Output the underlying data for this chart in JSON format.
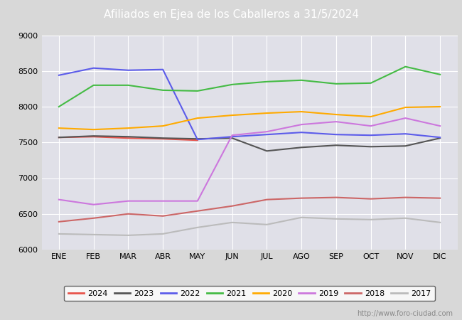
{
  "title": "Afiliados en Ejea de los Caballeros a 31/5/2024",
  "title_color": "#ffffff",
  "title_bg_color": "#4472c4",
  "ylim": [
    6000,
    9000
  ],
  "yticks": [
    6000,
    6500,
    7000,
    7500,
    8000,
    8500,
    9000
  ],
  "months": [
    "ENE",
    "FEB",
    "MAR",
    "ABR",
    "MAY",
    "JUN",
    "JUL",
    "AGO",
    "SEP",
    "OCT",
    "NOV",
    "DIC"
  ],
  "watermark": "http://www.foro-ciudad.com",
  "series": {
    "2024": {
      "color": "#e8534a",
      "linewidth": 1.5,
      "data": [
        7570,
        7580,
        7560,
        7550,
        7530,
        null,
        null,
        null,
        null,
        null,
        null,
        null
      ]
    },
    "2023": {
      "color": "#555555",
      "linewidth": 1.5,
      "data": [
        7570,
        7590,
        7580,
        7560,
        7550,
        7560,
        7380,
        7430,
        7460,
        7440,
        7450,
        7560
      ]
    },
    "2022": {
      "color": "#5b5bea",
      "linewidth": 1.5,
      "data": [
        8440,
        8540,
        8510,
        8520,
        7540,
        7580,
        7610,
        7640,
        7610,
        7600,
        7620,
        7570
      ]
    },
    "2021": {
      "color": "#44bb44",
      "linewidth": 1.5,
      "data": [
        8000,
        8300,
        8300,
        8230,
        8220,
        8310,
        8350,
        8370,
        8320,
        8330,
        8560,
        8450
      ]
    },
    "2020": {
      "color": "#ffaa00",
      "linewidth": 1.5,
      "data": [
        7700,
        7680,
        7700,
        7730,
        7840,
        7880,
        7910,
        7930,
        7890,
        7860,
        7990,
        8000
      ]
    },
    "2019": {
      "color": "#cc77dd",
      "linewidth": 1.5,
      "data": [
        6700,
        6630,
        6680,
        6680,
        6680,
        7600,
        7650,
        7750,
        7790,
        7730,
        7840,
        7730
      ]
    },
    "2018": {
      "color": "#cc6666",
      "linewidth": 1.5,
      "data": [
        6390,
        6440,
        6500,
        6470,
        6540,
        6610,
        6700,
        6720,
        6730,
        6710,
        6730,
        6720
      ]
    },
    "2017": {
      "color": "#bbbbbb",
      "linewidth": 1.5,
      "data": [
        6220,
        6210,
        6200,
        6220,
        6310,
        6380,
        6350,
        6450,
        6430,
        6420,
        6440,
        6380
      ]
    }
  },
  "legend_order": [
    "2024",
    "2023",
    "2022",
    "2021",
    "2020",
    "2019",
    "2018",
    "2017"
  ],
  "bg_color": "#d8d8d8",
  "plot_bg_color": "#e0e0e8",
  "grid_color": "#ffffff",
  "grid_linewidth": 0.8
}
